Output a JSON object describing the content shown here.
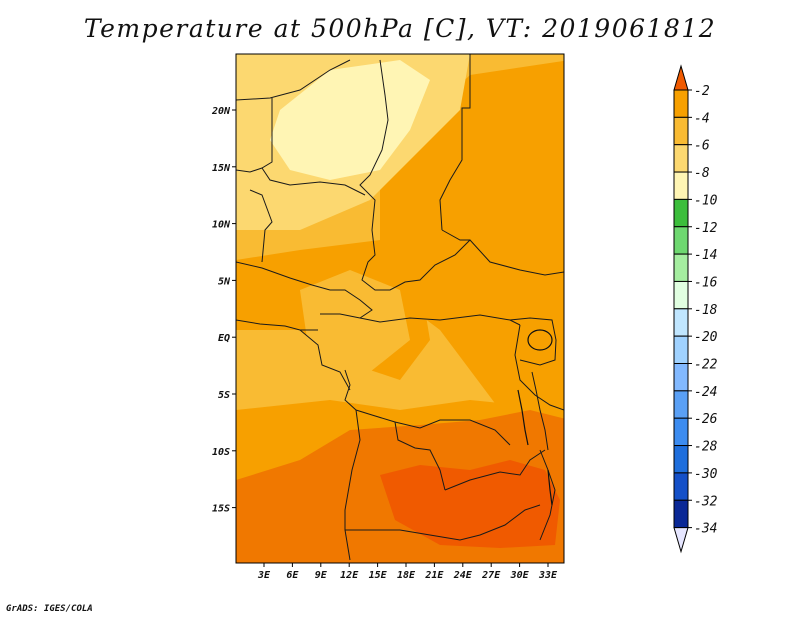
{
  "title": "Temperature at 500hPa [C], VT: 2019061812",
  "credit": "GrADS: IGES/COLA",
  "map": {
    "lon_labels": [
      "3E",
      "6E",
      "9E",
      "12E",
      "15E",
      "18E",
      "21E",
      "24E",
      "27E",
      "30E",
      "33E"
    ],
    "lat_labels": [
      "20N",
      "15N",
      "10N",
      "5N",
      "EQ",
      "5S",
      "10S",
      "15S"
    ]
  },
  "colorbar": {
    "labels": [
      "-2",
      "-4",
      "-6",
      "-8",
      "-10",
      "-12",
      "-14",
      "-16",
      "-18",
      "-20",
      "-22",
      "-24",
      "-26",
      "-28",
      "-30",
      "-32",
      "-34"
    ],
    "colors": [
      "#f05a00",
      "#f7a000",
      "#f9bb33",
      "#fcd870",
      "#fff5b4",
      "#3cbe3c",
      "#6ed870",
      "#a5eea0",
      "#e1ffe1",
      "#c0e6ff",
      "#a0d2ff",
      "#82b9ff",
      "#5aa0f5",
      "#3c8cf0",
      "#1e6edc",
      "#1450c8",
      "#0a2896",
      "#e6e6ff"
    ]
  }
}
